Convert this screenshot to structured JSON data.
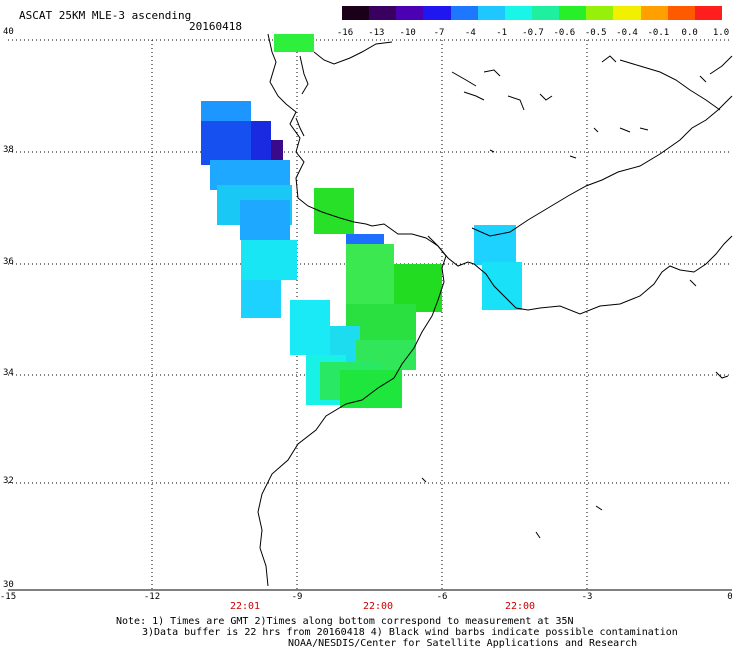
{
  "header": {
    "title": "ASCAT 25KM MLE-3 ascending",
    "date": "20160418"
  },
  "colorbar": {
    "labels": [
      "-16",
      "-13",
      "-10",
      "-7",
      "-4",
      "-1",
      "-0.7",
      "-0.6",
      "-0.5",
      "-0.4",
      "-0.1",
      "0.0",
      "1.0"
    ],
    "colors": [
      "#1a0018",
      "#3a0060",
      "#4b00b4",
      "#1f16f0",
      "#1e78ff",
      "#1ec8ff",
      "#19f5e6",
      "#1ef0a0",
      "#28f028",
      "#96f00a",
      "#f0f000",
      "#ffa000",
      "#ff5a00",
      "#ff1e1e"
    ]
  },
  "axes": {
    "lat_labels": [
      "40",
      "38",
      "36",
      "34",
      "32",
      "30"
    ],
    "lon_labels": [
      "-15",
      "-12",
      "-9",
      "-6",
      "-3",
      "0"
    ],
    "time_labels": [
      "22:01",
      "22:00",
      "22:00"
    ]
  },
  "notes": {
    "line1": "Note: 1) Times are GMT 2)Times along bottom correspond to measurement at 35N",
    "line2": "3)Data buffer is 22 hrs from 20160418 4) Black wind barbs indicate possible contamination",
    "line3": "NOAA/NESDIS/Center for Satellite Applications and Research"
  }
}
